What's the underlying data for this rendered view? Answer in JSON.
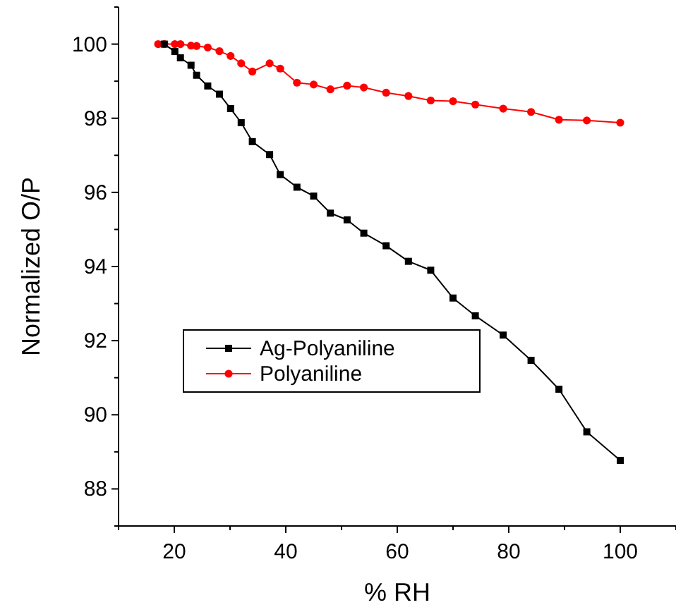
{
  "chart_data": {
    "type": "line",
    "xlabel": "% RH",
    "ylabel": "Normalized O/P",
    "xlim": [
      10,
      110
    ],
    "ylim": [
      87,
      101
    ],
    "xticks": [
      {
        "value": 10,
        "label": null
      },
      20,
      {
        "value": 30,
        "label": null
      },
      40,
      {
        "value": 50,
        "label": null
      },
      60,
      {
        "value": 70,
        "label": null
      },
      80,
      {
        "value": 90,
        "label": null
      },
      100,
      {
        "value": 110,
        "label": null
      }
    ],
    "yticks": [
      {
        "value": 87,
        "label": null
      },
      88,
      {
        "value": 89,
        "label": null
      },
      90,
      {
        "value": 91,
        "label": null
      },
      92,
      {
        "value": 93,
        "label": null
      },
      94,
      {
        "value": 95,
        "label": null
      },
      96,
      {
        "value": 97,
        "label": null
      },
      98,
      {
        "value": 99,
        "label": null
      },
      100,
      {
        "value": 101,
        "label": null
      }
    ],
    "grid": false,
    "legend": "left",
    "line_style": "solid",
    "series": [
      {
        "name": "Ag-Polyaniline",
        "color": "#000000",
        "marker": "square",
        "x": [
          18.2,
          20.1,
          21.1,
          23,
          24,
          26,
          28.1,
          30.1,
          32,
          34,
          37.1,
          39,
          42,
          45,
          48,
          51,
          54,
          58,
          62,
          66,
          70,
          74,
          79,
          84,
          89,
          94,
          100
        ],
        "values": [
          100,
          99.8,
          99.63,
          99.43,
          99.16,
          98.87,
          98.65,
          98.26,
          97.88,
          97.37,
          97.02,
          96.48,
          96.14,
          95.9,
          95.44,
          95.26,
          94.9,
          94.56,
          94.14,
          93.9,
          93.15,
          92.67,
          92.15,
          91.47,
          90.69,
          89.54,
          88.77
        ]
      },
      {
        "name": "Polyaniline",
        "color": "#ff0000",
        "marker": "circle",
        "x": [
          17.1,
          18.2,
          20.1,
          21.1,
          23,
          24,
          26,
          28.1,
          30.1,
          32,
          34,
          37.1,
          39,
          42,
          45,
          48,
          51,
          54,
          58,
          62,
          66,
          70,
          74,
          79,
          84,
          89,
          94,
          100
        ],
        "values": [
          100,
          100,
          100,
          100,
          99.96,
          99.95,
          99.91,
          99.81,
          99.68,
          99.48,
          99.26,
          99.48,
          99.34,
          98.96,
          98.91,
          98.78,
          98.88,
          98.83,
          98.69,
          98.6,
          98.48,
          98.46,
          98.37,
          98.26,
          98.17,
          97.96,
          97.94,
          97.88
        ]
      }
    ]
  }
}
